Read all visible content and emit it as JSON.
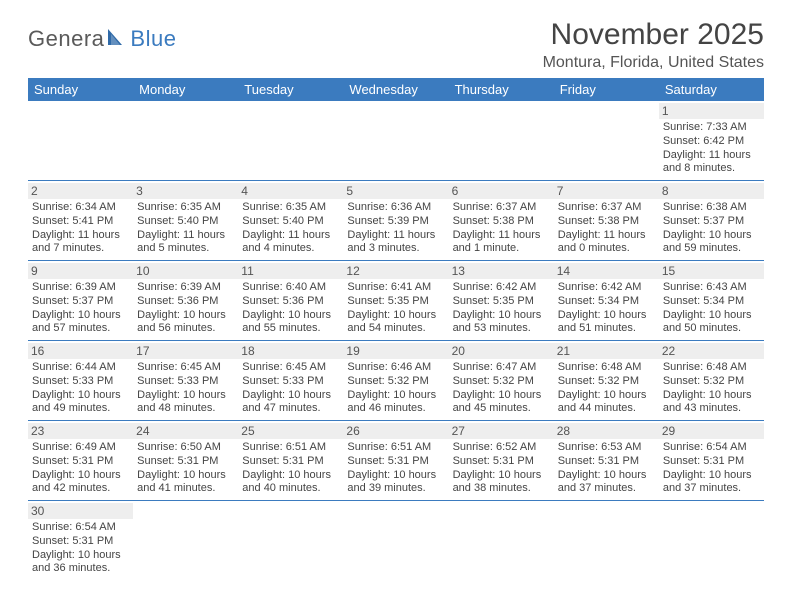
{
  "logo": {
    "part1": "Genera",
    "part2": "Blue",
    "icon_color": "#2f6aa8"
  },
  "title": "November 2025",
  "location": "Montura, Florida, United States",
  "colors": {
    "header_bg": "#3b7bbf",
    "header_text": "#ffffff",
    "daynum_bg": "#eeeeee",
    "border": "#3b7bbf",
    "body_text": "#444444"
  },
  "day_headers": [
    "Sunday",
    "Monday",
    "Tuesday",
    "Wednesday",
    "Thursday",
    "Friday",
    "Saturday"
  ],
  "first_weekday_index": 6,
  "days": [
    {
      "n": 1,
      "sr": "7:33 AM",
      "ss": "6:42 PM",
      "dl": "11 hours and 8 minutes."
    },
    {
      "n": 2,
      "sr": "6:34 AM",
      "ss": "5:41 PM",
      "dl": "11 hours and 7 minutes."
    },
    {
      "n": 3,
      "sr": "6:35 AM",
      "ss": "5:40 PM",
      "dl": "11 hours and 5 minutes."
    },
    {
      "n": 4,
      "sr": "6:35 AM",
      "ss": "5:40 PM",
      "dl": "11 hours and 4 minutes."
    },
    {
      "n": 5,
      "sr": "6:36 AM",
      "ss": "5:39 PM",
      "dl": "11 hours and 3 minutes."
    },
    {
      "n": 6,
      "sr": "6:37 AM",
      "ss": "5:38 PM",
      "dl": "11 hours and 1 minute."
    },
    {
      "n": 7,
      "sr": "6:37 AM",
      "ss": "5:38 PM",
      "dl": "11 hours and 0 minutes."
    },
    {
      "n": 8,
      "sr": "6:38 AM",
      "ss": "5:37 PM",
      "dl": "10 hours and 59 minutes."
    },
    {
      "n": 9,
      "sr": "6:39 AM",
      "ss": "5:37 PM",
      "dl": "10 hours and 57 minutes."
    },
    {
      "n": 10,
      "sr": "6:39 AM",
      "ss": "5:36 PM",
      "dl": "10 hours and 56 minutes."
    },
    {
      "n": 11,
      "sr": "6:40 AM",
      "ss": "5:36 PM",
      "dl": "10 hours and 55 minutes."
    },
    {
      "n": 12,
      "sr": "6:41 AM",
      "ss": "5:35 PM",
      "dl": "10 hours and 54 minutes."
    },
    {
      "n": 13,
      "sr": "6:42 AM",
      "ss": "5:35 PM",
      "dl": "10 hours and 53 minutes."
    },
    {
      "n": 14,
      "sr": "6:42 AM",
      "ss": "5:34 PM",
      "dl": "10 hours and 51 minutes."
    },
    {
      "n": 15,
      "sr": "6:43 AM",
      "ss": "5:34 PM",
      "dl": "10 hours and 50 minutes."
    },
    {
      "n": 16,
      "sr": "6:44 AM",
      "ss": "5:33 PM",
      "dl": "10 hours and 49 minutes."
    },
    {
      "n": 17,
      "sr": "6:45 AM",
      "ss": "5:33 PM",
      "dl": "10 hours and 48 minutes."
    },
    {
      "n": 18,
      "sr": "6:45 AM",
      "ss": "5:33 PM",
      "dl": "10 hours and 47 minutes."
    },
    {
      "n": 19,
      "sr": "6:46 AM",
      "ss": "5:32 PM",
      "dl": "10 hours and 46 minutes."
    },
    {
      "n": 20,
      "sr": "6:47 AM",
      "ss": "5:32 PM",
      "dl": "10 hours and 45 minutes."
    },
    {
      "n": 21,
      "sr": "6:48 AM",
      "ss": "5:32 PM",
      "dl": "10 hours and 44 minutes."
    },
    {
      "n": 22,
      "sr": "6:48 AM",
      "ss": "5:32 PM",
      "dl": "10 hours and 43 minutes."
    },
    {
      "n": 23,
      "sr": "6:49 AM",
      "ss": "5:31 PM",
      "dl": "10 hours and 42 minutes."
    },
    {
      "n": 24,
      "sr": "6:50 AM",
      "ss": "5:31 PM",
      "dl": "10 hours and 41 minutes."
    },
    {
      "n": 25,
      "sr": "6:51 AM",
      "ss": "5:31 PM",
      "dl": "10 hours and 40 minutes."
    },
    {
      "n": 26,
      "sr": "6:51 AM",
      "ss": "5:31 PM",
      "dl": "10 hours and 39 minutes."
    },
    {
      "n": 27,
      "sr": "6:52 AM",
      "ss": "5:31 PM",
      "dl": "10 hours and 38 minutes."
    },
    {
      "n": 28,
      "sr": "6:53 AM",
      "ss": "5:31 PM",
      "dl": "10 hours and 37 minutes."
    },
    {
      "n": 29,
      "sr": "6:54 AM",
      "ss": "5:31 PM",
      "dl": "10 hours and 37 minutes."
    },
    {
      "n": 30,
      "sr": "6:54 AM",
      "ss": "5:31 PM",
      "dl": "10 hours and 36 minutes."
    }
  ],
  "labels": {
    "sunrise": "Sunrise:",
    "sunset": "Sunset:",
    "daylight": "Daylight:"
  }
}
